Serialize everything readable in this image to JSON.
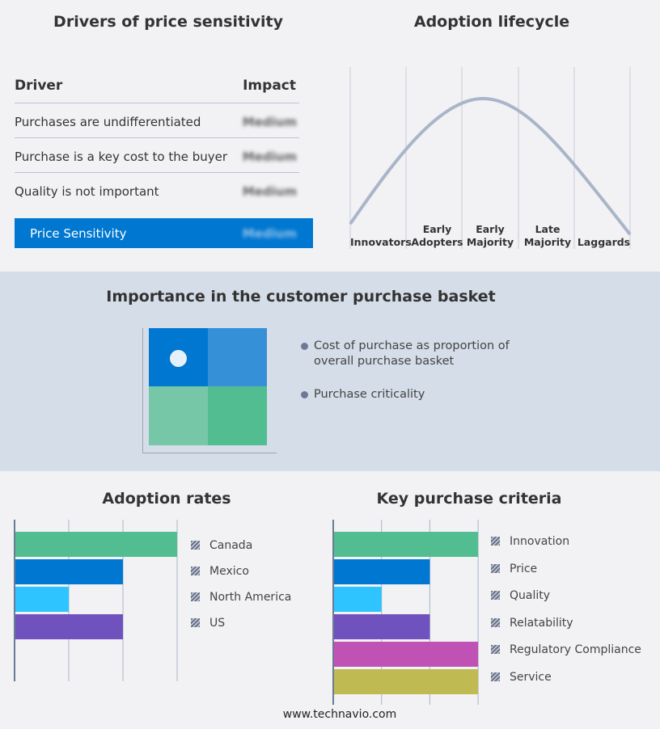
{
  "drivers": {
    "title": "Drivers of price sensitivity",
    "col_driver": "Driver",
    "col_impact": "Impact",
    "rows": [
      {
        "driver": "Purchases are undifferentiated",
        "impact": "Medium"
      },
      {
        "driver": "Purchase is a key cost to the buyer",
        "impact": "Medium"
      },
      {
        "driver": "Quality is not important",
        "impact": "Medium"
      }
    ],
    "summary": {
      "label": "Price Sensitivity",
      "impact": "Medium"
    },
    "accent": "#0077d0"
  },
  "lifecycle": {
    "title": "Adoption lifecycle",
    "stages": [
      "Innovators",
      "Early Adopters",
      "Early Majority",
      "Late Majority",
      "Laggards"
    ],
    "curve_color": "#a9b5c8"
  },
  "basket": {
    "title": "Importance in the customer purchase basket",
    "legend": [
      "Cost of purchase as proportion of overall purchase basket",
      "Purchase criticality"
    ],
    "colors": [
      "#0077d0",
      "#3590d8",
      "#75c7a8",
      "#52bd90"
    ]
  },
  "chart_data": [
    {
      "type": "bar",
      "orientation": "horizontal",
      "title": "Adoption rates",
      "categories": [
        "Canada",
        "Mexico",
        "North America",
        "US"
      ],
      "values": [
        3,
        2,
        1,
        2
      ],
      "xlim": [
        0,
        3
      ],
      "grid": true,
      "legend": "right",
      "colors": [
        "#52bd90",
        "#0077d0",
        "#2ec4ff",
        "#6f52bd"
      ]
    },
    {
      "type": "bar",
      "orientation": "horizontal",
      "title": "Key purchase criteria",
      "categories": [
        "Innovation",
        "Price",
        "Quality",
        "Relatability",
        "Regulatory Compliance",
        "Service"
      ],
      "values": [
        3,
        2,
        1,
        2,
        3,
        3
      ],
      "xlim": [
        0,
        3
      ],
      "grid": true,
      "legend": "right",
      "colors": [
        "#52bd90",
        "#0077d0",
        "#2ec4ff",
        "#6f52bd",
        "#bf52b4",
        "#bfbb52"
      ]
    }
  ],
  "footer": "www.technavio.com"
}
